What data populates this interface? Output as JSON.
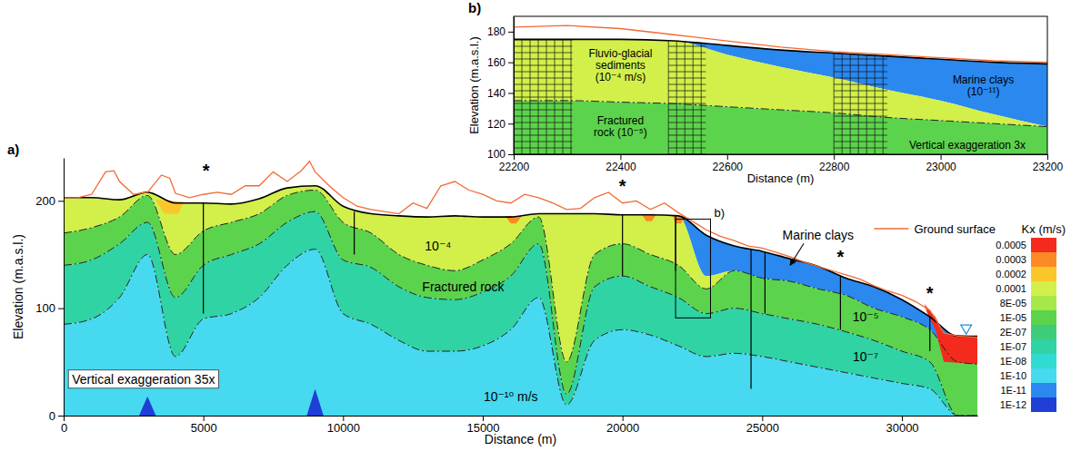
{
  "chart_data": [
    {
      "type": "cross_section",
      "panel_label": "a)",
      "x_label": "Distance (m)",
      "y_label": "Elevation (m.a.s.l.)",
      "xlim": [
        0,
        32700
      ],
      "xticks": [
        0,
        5000,
        10000,
        15000,
        20000,
        25000,
        30000
      ],
      "ylim": [
        0,
        240
      ],
      "yticks": [
        0,
        100,
        200
      ],
      "legend": "upper right",
      "series": [
        {
          "name": "Ground surface",
          "type": "line",
          "color": "#f26a35",
          "x": [
            0,
            500,
            1000,
            1500,
            1800,
            2000,
            2500,
            3000,
            3500,
            3800,
            4000,
            4500,
            5000,
            5500,
            6000,
            6500,
            7000,
            7500,
            8000,
            8500,
            8800,
            9000,
            9500,
            10000,
            10500,
            11000,
            12000,
            12500,
            13000,
            13500,
            14000,
            14500,
            15000,
            15500,
            16000,
            16500,
            17000,
            17500,
            18000,
            18500,
            19000,
            19500,
            20000,
            20500,
            21000,
            21500,
            22000,
            22500,
            23000,
            23500,
            24000,
            24500,
            25000,
            25500,
            26000,
            26500,
            27000,
            27500,
            28000,
            28500,
            29000,
            29500,
            30000,
            30500,
            31000,
            31500,
            32000,
            32700
          ],
          "values": [
            203,
            203,
            206,
            227,
            228,
            218,
            206,
            208,
            224,
            221,
            207,
            203,
            206,
            208,
            206,
            214,
            214,
            227,
            218,
            228,
            237,
            227,
            214,
            203,
            195,
            192,
            188,
            198,
            193,
            214,
            218,
            210,
            206,
            200,
            198,
            206,
            203,
            198,
            192,
            193,
            203,
            208,
            198,
            200,
            192,
            198,
            189,
            181,
            173,
            167,
            163,
            158,
            156,
            152,
            148,
            143,
            139,
            135,
            131,
            127,
            121,
            116,
            112,
            106,
            98,
            77,
            74,
            73
          ]
        }
      ],
      "x": [
        0,
        1000,
        2000,
        3000,
        4000,
        5000,
        6000,
        7000,
        8000,
        9000,
        10000,
        11000,
        12000,
        13000,
        14000,
        15000,
        16000,
        17000,
        18000,
        19000,
        20000,
        21000,
        22000,
        23000,
        24000,
        25000,
        26000,
        27000,
        28000,
        29000,
        30000,
        31000,
        32000,
        32700
      ],
      "model_top": [
        203,
        203,
        201,
        208,
        198,
        198,
        197,
        202,
        212,
        214,
        195,
        188,
        186,
        185,
        186,
        185,
        185,
        188,
        188,
        188,
        187,
        187,
        186,
        168,
        158,
        153,
        146,
        139,
        128,
        120,
        108,
        92,
        74,
        74
      ],
      "layers": [
        {
          "kx": 1e-11,
          "base": [
            203,
            203,
            201,
            208,
            198,
            198,
            197,
            202,
            212,
            214,
            195,
            188,
            186,
            185,
            186,
            185,
            185,
            188,
            188,
            188,
            187,
            187,
            186,
            130,
            135,
            128,
            125,
            118,
            112,
            100,
            92,
            80,
            50,
            48
          ]
        },
        {
          "kx": 0.0001,
          "line_style": "dashdot",
          "base": [
            170,
            175,
            185,
            205,
            150,
            172,
            180,
            188,
            205,
            210,
            180,
            170,
            150,
            140,
            135,
            145,
            160,
            185,
            50,
            150,
            160,
            150,
            140,
            118,
            135,
            128,
            125,
            118,
            112,
            100,
            92,
            80,
            50,
            48
          ]
        },
        {
          "kx": 1e-05,
          "line_style": "dashdot",
          "base": [
            140,
            145,
            160,
            180,
            110,
            140,
            150,
            160,
            180,
            190,
            145,
            138,
            120,
            110,
            108,
            115,
            130,
            160,
            20,
            120,
            130,
            120,
            110,
            95,
            100,
            95,
            90,
            85,
            78,
            70,
            60,
            50,
            0,
            0
          ]
        },
        {
          "kx": 1e-07,
          "line_style": "dashdot",
          "base": [
            85,
            90,
            110,
            150,
            55,
            90,
            95,
            110,
            140,
            155,
            95,
            85,
            70,
            60,
            60,
            65,
            80,
            110,
            10,
            70,
            80,
            75,
            65,
            55,
            58,
            55,
            50,
            45,
            40,
            35,
            30,
            25,
            0,
            0
          ]
        },
        {
          "kx": 1e-10
        }
      ],
      "patches": [
        {
          "kx": 0.0005,
          "x": [
            30800,
            31200,
            31500,
            32700,
            32700,
            31500,
            31200,
            30900
          ],
          "y": [
            104,
            92,
            76,
            74,
            48,
            50,
            80,
            96
          ]
        },
        {
          "kx": 0.0003,
          "x": [
            15800,
            16400,
            16200,
            16000
          ],
          "y": [
            186,
            186,
            179,
            179
          ]
        },
        {
          "kx": 0.0003,
          "x": [
            20700,
            21200,
            21050,
            20850
          ],
          "y": [
            187,
            187,
            181,
            181
          ]
        },
        {
          "kx": 0.0003,
          "x": [
            21800,
            22200,
            22100,
            21900
          ],
          "y": [
            186,
            185,
            179,
            179
          ]
        },
        {
          "kx": 0.0002,
          "x": [
            3300,
            4300,
            4100,
            3600
          ],
          "y": [
            201,
            199,
            188,
            188
          ]
        },
        {
          "kx": 1e-12,
          "x": [
            2700,
            3000,
            3300
          ],
          "y": [
            0,
            18,
            0
          ]
        },
        {
          "kx": 1e-12,
          "x": [
            8700,
            9000,
            9300
          ],
          "y": [
            0,
            25,
            0
          ]
        }
      ],
      "boreholes": [
        {
          "x": 5000,
          "top": 198,
          "bottom": 95
        },
        {
          "x": 10400,
          "top": 190,
          "bottom": 150
        },
        {
          "x": 20000,
          "top": 187,
          "bottom": 130
        },
        {
          "x": 21900,
          "top": 186,
          "bottom": 135
        },
        {
          "x": 24600,
          "top": 155,
          "bottom": 25
        },
        {
          "x": 25100,
          "top": 152,
          "bottom": 95
        },
        {
          "x": 27800,
          "top": 130,
          "bottom": 80
        },
        {
          "x": 31000,
          "top": 92,
          "bottom": 60
        }
      ],
      "water_level": {
        "x": 32300,
        "y": 76
      },
      "inset_box": {
        "label": "b)",
        "x": [
          21900,
          23150
        ],
        "y": [
          91,
          183
        ]
      },
      "annotations": [
        {
          "text": "*",
          "x": 5100,
          "y": 222
        },
        {
          "text": "*",
          "x": 20000,
          "y": 208
        },
        {
          "text": "*",
          "x": 27800,
          "y": 142
        },
        {
          "text": "*",
          "x": 31000,
          "y": 108
        },
        {
          "text": "10⁻⁴",
          "x": 13400,
          "y": 158
        },
        {
          "text": "Fractured rock",
          "x": 14300,
          "y": 120
        },
        {
          "text": "10⁻⁵",
          "x": 28700,
          "y": 92
        },
        {
          "text": "10⁻⁷",
          "x": 28700,
          "y": 55
        },
        {
          "text": "10⁻¹⁰ m/s",
          "x": 16000,
          "y": 18
        },
        {
          "text": "Marine clays",
          "x": 27000,
          "y": 168,
          "arrow_to": [
            26000,
            140
          ]
        }
      ],
      "note": {
        "text": "Vertical exaggeration 35x",
        "x": 300,
        "y": 34
      },
      "colorbar": {
        "title": "Kx (m/s)",
        "ticks": [
          0.0005,
          0.0003,
          0.0002,
          0.0001,
          {
            "value": 8e-05,
            "label": "8E-05"
          },
          {
            "value": 1e-05,
            "label": "1E-05"
          },
          {
            "value": 2e-07,
            "label": "2E-07"
          },
          {
            "value": 1e-07,
            "label": "1E-07"
          },
          {
            "value": 1e-08,
            "label": "1E-08"
          },
          {
            "value": 1e-10,
            "label": "1E-10"
          },
          {
            "value": 1e-11,
            "label": "1E-11"
          },
          {
            "value": 1e-12,
            "label": "1E-12"
          }
        ],
        "colors": [
          "#f52a1e",
          "#fb8a24",
          "#fbc62a",
          "#d2ef4a",
          "#a6e84a",
          "#5cd34c",
          "#3fcc78",
          "#2fd3a4",
          "#30dcd2",
          "#46d9f0",
          "#2a88ee",
          "#1f3fd6"
        ]
      }
    },
    {
      "type": "cross_section",
      "panel_label": "b)",
      "x_label": "Distance (m)",
      "y_label": "Elevation (m.a.s.l.)",
      "xlim": [
        22200,
        23200
      ],
      "xticks": [
        22200,
        22400,
        22600,
        22800,
        23000,
        23200
      ],
      "ylim": [
        100,
        190
      ],
      "yticks": [
        100,
        120,
        140,
        160,
        180
      ],
      "series": [
        {
          "name": "Ground surface",
          "type": "line",
          "color": "#f26a35",
          "x": [
            22200,
            22300,
            22400,
            22500,
            22600,
            22700,
            22800,
            22900,
            23000,
            23100,
            23200
          ],
          "values": [
            183,
            184,
            182,
            178,
            174,
            170,
            167,
            165,
            163,
            161,
            160
          ]
        }
      ],
      "x": [
        22200,
        22300,
        22400,
        22500,
        22600,
        22700,
        22800,
        22900,
        23000,
        23100,
        23200
      ],
      "model_top": [
        175,
        175,
        175,
        174,
        171,
        168,
        166,
        164,
        162,
        160,
        159
      ],
      "layers": [
        {
          "kx": 1e-11,
          "base": [
            175,
            175,
            175,
            174,
            165,
            157,
            150,
            142,
            135,
            126,
            118
          ]
        },
        {
          "kx": 0.0001,
          "line_style": "dashdot",
          "base": [
            135,
            135,
            134,
            133,
            131,
            129,
            127,
            124,
            122,
            120,
            118
          ]
        },
        {
          "kx": 1e-05
        }
      ],
      "mesh_zones": [
        [
          22200,
          22310
        ],
        [
          22490,
          22560
        ],
        [
          22800,
          22900
        ]
      ],
      "annotations": [
        {
          "lines": [
            "Fluvio-glacial",
            "sediments",
            "(10⁻⁴ m/s)"
          ],
          "x": 22400,
          "y": 158
        },
        {
          "lines": [
            "Fractured",
            "rock (10⁻⁵)"
          ],
          "x": 22400,
          "y": 118
        },
        {
          "lines": [
            "Marine clays",
            "(10⁻¹¹)"
          ],
          "x": 23080,
          "y": 145
        },
        {
          "lines": [
            "Vertical exaggeration 3x"
          ],
          "x": 23050,
          "y": 106
        }
      ]
    }
  ]
}
